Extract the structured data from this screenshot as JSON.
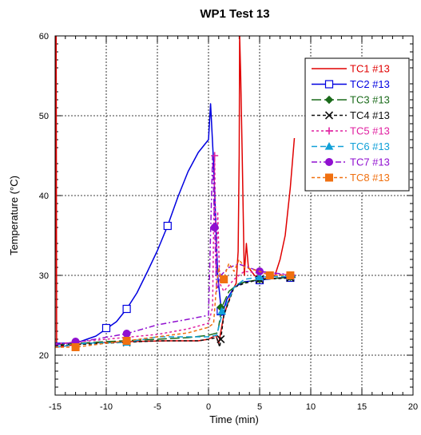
{
  "chart_data": {
    "type": "line",
    "title": "WP1 Test 13",
    "xlabel": "Time (min)",
    "ylabel": "Temperature (°C)",
    "xlim": [
      -15,
      20
    ],
    "ylim": [
      15,
      60
    ],
    "xticks": [
      -15,
      -10,
      -5,
      0,
      5,
      10,
      15,
      20
    ],
    "yticks": [
      20,
      30,
      40,
      50,
      60
    ],
    "grid": true,
    "legend_position": "top-right",
    "series": [
      {
        "name": "TC1 #13",
        "color": "#e00000",
        "dash": "",
        "marker": "none",
        "points": [
          [
            -15,
            21
          ],
          [
            -14.95,
            60
          ],
          [
            -14.9,
            60
          ],
          [
            -14.85,
            21
          ],
          [
            -12,
            21.5
          ],
          [
            -8,
            21.7
          ],
          [
            -4,
            21.8
          ],
          [
            -1,
            21.8
          ],
          [
            0,
            22.0
          ],
          [
            0.7,
            22.5
          ],
          [
            1.0,
            21.5
          ],
          [
            1.5,
            25
          ],
          [
            2.3,
            28
          ],
          [
            2.7,
            29
          ],
          [
            2.9,
            33
          ],
          [
            3.0,
            45
          ],
          [
            3.05,
            60
          ],
          [
            3.15,
            55
          ],
          [
            3.3,
            45
          ],
          [
            3.5,
            30
          ],
          [
            3.7,
            34
          ],
          [
            3.9,
            31
          ],
          [
            4.5,
            30
          ],
          [
            5,
            29.5
          ],
          [
            6,
            29.7
          ],
          [
            6.5,
            30
          ],
          [
            7,
            32
          ],
          [
            7.5,
            35
          ],
          [
            8.0,
            41
          ],
          [
            8.4,
            47.2
          ]
        ]
      },
      {
        "name": "TC2 #13",
        "color": "#0000e0",
        "dash": "",
        "marker": "square",
        "points": [
          [
            -15,
            21.5
          ],
          [
            -13,
            21.5
          ],
          [
            -11,
            22.4
          ],
          [
            -9,
            24.2
          ],
          [
            -8,
            25.8
          ],
          [
            -7,
            27.8
          ],
          [
            -6,
            30.4
          ],
          [
            -5,
            33.1
          ],
          [
            -4,
            36.2
          ],
          [
            -3,
            39.8
          ],
          [
            -2,
            43.0
          ],
          [
            -1,
            45.4
          ],
          [
            0,
            47
          ],
          [
            0.2,
            51.5
          ],
          [
            0.5,
            44
          ],
          [
            0.9,
            30
          ],
          [
            1.3,
            25
          ],
          [
            1.8,
            27
          ],
          [
            2.5,
            28.5
          ],
          [
            3.5,
            29.2
          ],
          [
            5,
            29.4
          ],
          [
            7,
            29.7
          ],
          [
            8.5,
            29.8
          ]
        ],
        "markers": [
          [
            -10,
            23.4
          ],
          [
            -8,
            25.8
          ],
          [
            -4,
            36.2
          ],
          [
            1.2,
            25.5
          ],
          [
            5,
            29.4
          ],
          [
            8,
            29.7
          ]
        ]
      },
      {
        "name": "TC3 #13",
        "color": "#1a6a1a",
        "dash": "12 4",
        "marker": "diamond",
        "points": [
          [
            -15,
            21.3
          ],
          [
            -10,
            21.7
          ],
          [
            -5,
            22.0
          ],
          [
            -2,
            22.2
          ],
          [
            0,
            22.5
          ],
          [
            0.9,
            22.8
          ],
          [
            1.3,
            26
          ],
          [
            2,
            28
          ],
          [
            3,
            29
          ],
          [
            5,
            29.5
          ],
          [
            8.5,
            29.8
          ]
        ],
        "markers": [
          [
            -13,
            21.5
          ],
          [
            -8,
            21.8
          ],
          [
            1.2,
            26
          ],
          [
            5,
            29.5
          ],
          [
            8,
            29.8
          ]
        ]
      },
      {
        "name": "TC4 #13",
        "color": "#111111",
        "dash": "4 3",
        "marker": "x",
        "points": [
          [
            -15,
            21.2
          ],
          [
            -10,
            21.5
          ],
          [
            -5,
            21.8
          ],
          [
            -1,
            21.8
          ],
          [
            0,
            22
          ],
          [
            0.8,
            22.2
          ],
          [
            1.1,
            21.0
          ],
          [
            1.5,
            25
          ],
          [
            2.5,
            28.5
          ],
          [
            3.5,
            29
          ],
          [
            5,
            29.5
          ],
          [
            8.5,
            29.7
          ]
        ],
        "markers": [
          [
            -13,
            21.4
          ],
          [
            -8,
            21.6
          ],
          [
            1.2,
            22
          ],
          [
            5,
            29.5
          ],
          [
            8,
            29.7
          ]
        ]
      },
      {
        "name": "TC5 #13",
        "color": "#e020a0",
        "dash": "3 3",
        "marker": "plus",
        "points": [
          [
            -15,
            21.4
          ],
          [
            -10,
            22.0
          ],
          [
            -5,
            22.6
          ],
          [
            -2,
            23.3
          ],
          [
            0,
            24.0
          ],
          [
            0.4,
            26
          ],
          [
            0.6,
            45
          ],
          [
            0.75,
            30
          ],
          [
            0.9,
            38
          ],
          [
            1.1,
            29
          ],
          [
            1.5,
            28
          ],
          [
            2.5,
            29.5
          ],
          [
            3.5,
            30.5
          ],
          [
            5,
            30.3
          ],
          [
            8.5,
            30
          ]
        ],
        "markers": [
          [
            -13,
            21.6
          ],
          [
            -8,
            22.2
          ],
          [
            0.6,
            45
          ],
          [
            5,
            30.3
          ],
          [
            8,
            30
          ]
        ]
      },
      {
        "name": "TC6 #13",
        "color": "#10a0d8",
        "dash": "7 4",
        "marker": "triangle",
        "points": [
          [
            -15,
            21.0
          ],
          [
            -12,
            21.5
          ],
          [
            -8,
            21.6
          ],
          [
            -5,
            22.3
          ],
          [
            -2,
            22.3
          ],
          [
            0,
            22.3
          ],
          [
            0.8,
            22.5
          ],
          [
            1.3,
            25
          ],
          [
            2.5,
            28.5
          ],
          [
            3.5,
            29.5
          ],
          [
            5,
            29.8
          ],
          [
            8.5,
            29.9
          ]
        ],
        "markers": [
          [
            -13,
            21.4
          ],
          [
            -8,
            21.6
          ],
          [
            1.3,
            25.5
          ],
          [
            5,
            29.8
          ],
          [
            8,
            29.9
          ]
        ]
      },
      {
        "name": "TC7 #13",
        "color": "#9010d0",
        "dash": "7 3 2 3",
        "marker": "circle",
        "points": [
          [
            -15,
            21.3
          ],
          [
            -12,
            21.8
          ],
          [
            -8,
            22.7
          ],
          [
            -5,
            23.8
          ],
          [
            -2,
            24.5
          ],
          [
            0,
            25
          ],
          [
            0.4,
            45
          ],
          [
            0.6,
            36
          ],
          [
            0.8,
            28
          ],
          [
            1.2,
            30
          ],
          [
            2,
            31
          ],
          [
            3,
            31.4
          ],
          [
            5,
            30.5
          ],
          [
            8.5,
            30
          ]
        ],
        "markers": [
          [
            -13,
            21.7
          ],
          [
            -8,
            22.7
          ],
          [
            0.6,
            36
          ],
          [
            5,
            30.5
          ],
          [
            8,
            30
          ]
        ]
      },
      {
        "name": "TC8 #13",
        "color": "#f07010",
        "dash": "4 3",
        "marker": "filled-square",
        "points": [
          [
            -15,
            21.0
          ],
          [
            -13,
            21.0
          ],
          [
            -10,
            21.5
          ],
          [
            -8,
            21.8
          ],
          [
            -5,
            22.3
          ],
          [
            -2,
            22.8
          ],
          [
            0,
            23.5
          ],
          [
            0.5,
            24
          ],
          [
            0.8,
            29
          ],
          [
            1.0,
            31
          ],
          [
            1.3,
            29
          ],
          [
            2,
            31.5
          ],
          [
            2.5,
            30.5
          ],
          [
            3,
            32
          ],
          [
            3.5,
            31
          ],
          [
            5,
            30.5
          ],
          [
            6,
            30
          ],
          [
            8.5,
            30
          ]
        ],
        "markers": [
          [
            -13,
            21.0
          ],
          [
            -8,
            21.8
          ],
          [
            1.5,
            29.5
          ],
          [
            6,
            30
          ],
          [
            8,
            30
          ]
        ]
      }
    ]
  }
}
